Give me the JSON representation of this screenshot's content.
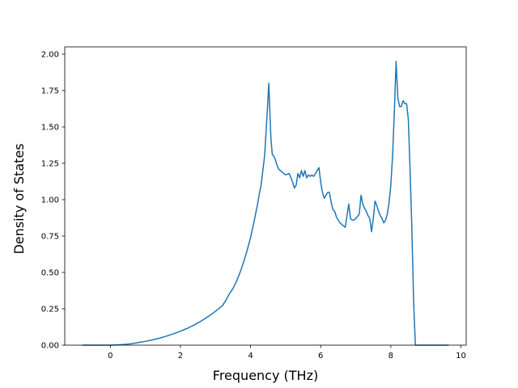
{
  "chart_data": {
    "type": "line",
    "title": "",
    "xlabel": "Frequency (THz)",
    "ylabel": "Density of States",
    "xlim": [
      -1.3,
      10.15
    ],
    "ylim": [
      0,
      2.05
    ],
    "xticks": [
      0,
      2,
      4,
      6,
      8,
      10
    ],
    "yticks": [
      0.0,
      0.25,
      0.5,
      0.75,
      1.0,
      1.25,
      1.5,
      1.75,
      2.0
    ],
    "ytick_labels": [
      "0.00",
      "0.25",
      "0.50",
      "0.75",
      "1.00",
      "1.25",
      "1.50",
      "1.75",
      "2.00"
    ],
    "grid": false,
    "legend": "none",
    "line_color": "#1f77b4",
    "series": [
      {
        "x": [
          -0.8,
          -0.4,
          0.0,
          0.2,
          0.4,
          0.6,
          0.8,
          1.0,
          1.2,
          1.4,
          1.6,
          1.8,
          2.0,
          2.2,
          2.4,
          2.6,
          2.8,
          3.0,
          3.2,
          3.3,
          3.4,
          3.5,
          3.6,
          3.7,
          3.8,
          3.9,
          4.0,
          4.1,
          4.2,
          4.25,
          4.3,
          4.4,
          4.48,
          4.52,
          4.58,
          4.62,
          4.66,
          4.7,
          4.75,
          4.8,
          4.85,
          4.9,
          5.0,
          5.1,
          5.15,
          5.2,
          5.25,
          5.3,
          5.35,
          5.4,
          5.45,
          5.5,
          5.55,
          5.6,
          5.65,
          5.7,
          5.75,
          5.8,
          5.85,
          5.9,
          5.95,
          6.0,
          6.05,
          6.1,
          6.15,
          6.2,
          6.25,
          6.3,
          6.35,
          6.4,
          6.45,
          6.5,
          6.55,
          6.6,
          6.65,
          6.7,
          6.8,
          6.85,
          6.9,
          6.95,
          7.0,
          7.1,
          7.15,
          7.2,
          7.25,
          7.3,
          7.35,
          7.4,
          7.45,
          7.5,
          7.55,
          7.6,
          7.65,
          7.7,
          7.75,
          7.8,
          7.85,
          7.9,
          7.95,
          8.0,
          8.05,
          8.1,
          8.15,
          8.2,
          8.25,
          8.3,
          8.35,
          8.4,
          8.45,
          8.5,
          8.55,
          8.6,
          8.65,
          8.7,
          8.75,
          8.78,
          8.82,
          8.9,
          9.2,
          9.65
        ],
        "y": [
          0.0,
          0.0,
          0.0,
          0.002,
          0.005,
          0.01,
          0.018,
          0.026,
          0.036,
          0.048,
          0.062,
          0.078,
          0.096,
          0.116,
          0.14,
          0.167,
          0.198,
          0.233,
          0.272,
          0.31,
          0.355,
          0.39,
          0.44,
          0.5,
          0.57,
          0.65,
          0.74,
          0.85,
          0.97,
          1.04,
          1.1,
          1.3,
          1.62,
          1.8,
          1.42,
          1.31,
          1.3,
          1.28,
          1.24,
          1.21,
          1.2,
          1.19,
          1.17,
          1.18,
          1.15,
          1.12,
          1.08,
          1.1,
          1.18,
          1.15,
          1.2,
          1.16,
          1.2,
          1.15,
          1.17,
          1.16,
          1.17,
          1.16,
          1.18,
          1.2,
          1.22,
          1.12,
          1.05,
          1.01,
          1.03,
          1.05,
          1.05,
          0.98,
          0.93,
          0.92,
          0.88,
          0.86,
          0.84,
          0.83,
          0.82,
          0.81,
          0.97,
          0.87,
          0.86,
          0.86,
          0.87,
          0.9,
          1.03,
          0.97,
          0.94,
          0.92,
          0.89,
          0.87,
          0.78,
          0.87,
          0.99,
          0.96,
          0.92,
          0.89,
          0.87,
          0.84,
          0.86,
          0.9,
          0.98,
          1.1,
          1.3,
          1.6,
          1.95,
          1.7,
          1.64,
          1.64,
          1.68,
          1.66,
          1.66,
          1.55,
          1.2,
          0.8,
          0.3,
          0.0,
          0.0,
          0.0,
          0.0,
          0.0,
          0.0,
          0.0
        ]
      }
    ]
  }
}
